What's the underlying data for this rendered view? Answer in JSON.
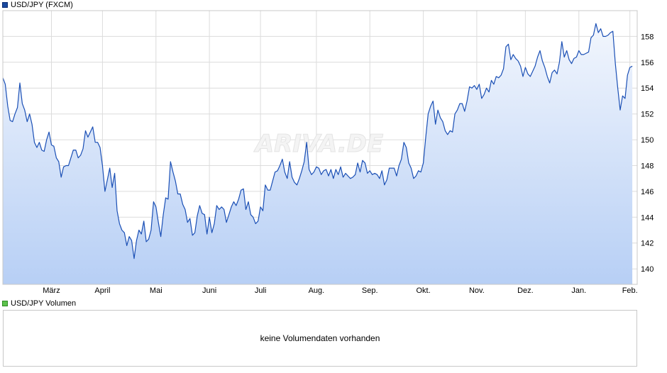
{
  "legend": {
    "price_label": "USD/JPY (FXCM)",
    "volume_label": "USD/JPY Volumen",
    "price_color": "#1a4aa0",
    "volume_color": "#5cc24c"
  },
  "watermark": "ARIVA.DE",
  "volume_panel": {
    "message": "keine Volumendaten vorhanden"
  },
  "chart_data": {
    "type": "area",
    "title": "",
    "xlabel": "",
    "ylabel": "",
    "ylim": [
      138.8,
      160.0
    ],
    "yticks": [
      140,
      142,
      144,
      146,
      148,
      150,
      152,
      154,
      156,
      158
    ],
    "x_range": [
      0,
      261
    ],
    "xticks": [
      {
        "label": "März",
        "x": 20
      },
      {
        "label": "April",
        "x": 41
      },
      {
        "label": "Mai",
        "x": 63
      },
      {
        "label": "Juni",
        "x": 85
      },
      {
        "label": "Juli",
        "x": 106
      },
      {
        "label": "Aug.",
        "x": 129
      },
      {
        "label": "Sep.",
        "x": 151
      },
      {
        "label": "Okt.",
        "x": 173
      },
      {
        "label": "Nov.",
        "x": 195
      },
      {
        "label": "Dez.",
        "x": 215
      },
      {
        "label": "Jan.",
        "x": 237
      },
      {
        "label": "Feb.",
        "x": 258
      }
    ],
    "grid": true,
    "line_color": "#1a4fb5",
    "fill_top_color": "#f2f6fd",
    "fill_bottom_color": "#b7cff5",
    "series": [
      {
        "values": [
          [
            0,
            154.8
          ],
          [
            1,
            154.3
          ],
          [
            2,
            152.6
          ],
          [
            3,
            151.5
          ],
          [
            4,
            151.4
          ],
          [
            5,
            152.0
          ],
          [
            6,
            152.5
          ],
          [
            7,
            154.4
          ],
          [
            8,
            152.8
          ],
          [
            9,
            152.3
          ],
          [
            10,
            151.4
          ],
          [
            11,
            152.0
          ],
          [
            12,
            151.2
          ],
          [
            13,
            149.8
          ],
          [
            14,
            149.4
          ],
          [
            15,
            149.8
          ],
          [
            16,
            149.2
          ],
          [
            17,
            149.1
          ],
          [
            18,
            150.0
          ],
          [
            19,
            150.6
          ],
          [
            20,
            149.6
          ],
          [
            21,
            149.5
          ],
          [
            22,
            148.6
          ],
          [
            23,
            148.3
          ],
          [
            24,
            147.1
          ],
          [
            25,
            147.9
          ],
          [
            26,
            148.0
          ],
          [
            27,
            148.0
          ],
          [
            28,
            148.6
          ],
          [
            29,
            149.2
          ],
          [
            30,
            149.2
          ],
          [
            31,
            148.6
          ],
          [
            32,
            148.8
          ],
          [
            33,
            149.3
          ],
          [
            34,
            150.7
          ],
          [
            35,
            150.2
          ],
          [
            36,
            150.6
          ],
          [
            37,
            151.0
          ],
          [
            38,
            149.8
          ],
          [
            39,
            149.8
          ],
          [
            40,
            149.4
          ],
          [
            41,
            148.0
          ],
          [
            42,
            146.0
          ],
          [
            43,
            146.9
          ],
          [
            44,
            147.8
          ],
          [
            45,
            146.3
          ],
          [
            46,
            147.4
          ],
          [
            47,
            144.5
          ],
          [
            48,
            143.5
          ],
          [
            49,
            143.0
          ],
          [
            50,
            142.8
          ],
          [
            51,
            141.8
          ],
          [
            52,
            142.5
          ],
          [
            53,
            142.2
          ],
          [
            54,
            140.8
          ],
          [
            55,
            142.2
          ],
          [
            56,
            143.0
          ],
          [
            57,
            142.7
          ],
          [
            58,
            143.7
          ],
          [
            59,
            142.1
          ],
          [
            60,
            142.3
          ],
          [
            61,
            143.0
          ],
          [
            62,
            145.2
          ],
          [
            63,
            144.8
          ],
          [
            64,
            143.6
          ],
          [
            65,
            142.5
          ],
          [
            66,
            144.2
          ],
          [
            67,
            145.5
          ],
          [
            68,
            145.4
          ],
          [
            69,
            148.3
          ],
          [
            70,
            147.5
          ],
          [
            71,
            146.8
          ],
          [
            72,
            145.8
          ],
          [
            73,
            145.8
          ],
          [
            74,
            145.0
          ],
          [
            75,
            144.6
          ],
          [
            76,
            143.6
          ],
          [
            77,
            143.9
          ],
          [
            78,
            142.6
          ],
          [
            79,
            142.8
          ],
          [
            80,
            144.1
          ],
          [
            81,
            144.9
          ],
          [
            82,
            144.3
          ],
          [
            83,
            144.2
          ],
          [
            84,
            142.7
          ],
          [
            85,
            144.0
          ],
          [
            86,
            142.8
          ],
          [
            87,
            143.5
          ],
          [
            88,
            144.9
          ],
          [
            89,
            144.6
          ],
          [
            90,
            144.8
          ],
          [
            91,
            144.6
          ],
          [
            92,
            143.6
          ],
          [
            93,
            144.2
          ],
          [
            94,
            144.8
          ],
          [
            95,
            145.2
          ],
          [
            96,
            144.9
          ],
          [
            97,
            145.4
          ],
          [
            98,
            146.1
          ],
          [
            99,
            146.2
          ],
          [
            100,
            144.6
          ],
          [
            101,
            145.2
          ],
          [
            102,
            144.2
          ],
          [
            103,
            144.0
          ],
          [
            104,
            143.5
          ],
          [
            105,
            143.7
          ],
          [
            106,
            144.8
          ],
          [
            107,
            144.5
          ],
          [
            108,
            146.5
          ],
          [
            109,
            146.1
          ],
          [
            110,
            146.1
          ],
          [
            111,
            146.8
          ],
          [
            112,
            147.5
          ],
          [
            113,
            147.6
          ],
          [
            114,
            148.0
          ],
          [
            115,
            148.5
          ],
          [
            116,
            147.5
          ],
          [
            117,
            147.0
          ],
          [
            118,
            148.3
          ],
          [
            119,
            147.1
          ],
          [
            120,
            146.7
          ],
          [
            121,
            146.5
          ],
          [
            122,
            147.0
          ],
          [
            123,
            147.6
          ],
          [
            124,
            148.3
          ],
          [
            125,
            149.8
          ],
          [
            126,
            147.7
          ],
          [
            127,
            147.3
          ],
          [
            128,
            147.5
          ],
          [
            129,
            147.9
          ],
          [
            130,
            147.8
          ],
          [
            131,
            147.3
          ],
          [
            132,
            147.6
          ],
          [
            133,
            147.7
          ],
          [
            134,
            147.2
          ],
          [
            135,
            147.7
          ],
          [
            136,
            147.0
          ],
          [
            137,
            147.7
          ],
          [
            138,
            147.3
          ],
          [
            139,
            147.9
          ],
          [
            140,
            147.1
          ],
          [
            141,
            147.4
          ],
          [
            142,
            147.2
          ],
          [
            143,
            147.0
          ],
          [
            144,
            147.1
          ],
          [
            145,
            147.3
          ],
          [
            146,
            148.2
          ],
          [
            147,
            147.5
          ],
          [
            148,
            148.4
          ],
          [
            149,
            148.2
          ],
          [
            150,
            147.4
          ],
          [
            151,
            147.6
          ],
          [
            152,
            147.3
          ],
          [
            153,
            147.4
          ],
          [
            154,
            147.3
          ],
          [
            155,
            147.0
          ],
          [
            156,
            147.6
          ],
          [
            157,
            146.5
          ],
          [
            158,
            146.9
          ],
          [
            159,
            147.8
          ],
          [
            160,
            147.8
          ],
          [
            161,
            147.8
          ],
          [
            162,
            147.2
          ],
          [
            163,
            148.0
          ],
          [
            164,
            148.5
          ],
          [
            165,
            149.8
          ],
          [
            166,
            149.4
          ],
          [
            167,
            148.2
          ],
          [
            168,
            147.8
          ],
          [
            169,
            147.0
          ],
          [
            170,
            147.2
          ],
          [
            171,
            147.6
          ],
          [
            172,
            147.5
          ],
          [
            173,
            148.2
          ],
          [
            174,
            150.2
          ],
          [
            175,
            152.0
          ],
          [
            176,
            152.6
          ],
          [
            177,
            153.0
          ],
          [
            178,
            151.2
          ],
          [
            179,
            152.3
          ],
          [
            180,
            151.7
          ],
          [
            181,
            151.4
          ],
          [
            182,
            150.7
          ],
          [
            183,
            150.4
          ],
          [
            184,
            150.7
          ],
          [
            185,
            150.6
          ],
          [
            186,
            152.0
          ],
          [
            187,
            152.3
          ],
          [
            188,
            152.8
          ],
          [
            189,
            152.8
          ],
          [
            190,
            152.2
          ],
          [
            191,
            153.0
          ],
          [
            192,
            154.1
          ],
          [
            193,
            154.0
          ],
          [
            194,
            154.2
          ],
          [
            195,
            153.9
          ],
          [
            196,
            154.3
          ],
          [
            197,
            153.2
          ],
          [
            198,
            153.5
          ],
          [
            199,
            154.0
          ],
          [
            200,
            153.7
          ],
          [
            201,
            154.6
          ],
          [
            202,
            154.3
          ],
          [
            203,
            154.9
          ],
          [
            204,
            154.8
          ],
          [
            205,
            155.0
          ],
          [
            206,
            155.5
          ],
          [
            207,
            157.2
          ],
          [
            208,
            157.4
          ],
          [
            209,
            156.2
          ],
          [
            210,
            156.6
          ],
          [
            211,
            156.3
          ],
          [
            212,
            156.1
          ],
          [
            213,
            155.7
          ],
          [
            214,
            154.9
          ],
          [
            215,
            155.6
          ],
          [
            216,
            155.1
          ],
          [
            217,
            154.9
          ],
          [
            218,
            155.3
          ],
          [
            219,
            155.7
          ],
          [
            220,
            156.4
          ],
          [
            221,
            156.9
          ],
          [
            222,
            156.1
          ],
          [
            223,
            155.6
          ],
          [
            224,
            154.9
          ],
          [
            225,
            154.4
          ],
          [
            226,
            155.2
          ],
          [
            227,
            155.4
          ],
          [
            228,
            155.1
          ],
          [
            229,
            156.0
          ],
          [
            230,
            157.6
          ],
          [
            231,
            156.4
          ],
          [
            232,
            156.9
          ],
          [
            233,
            156.2
          ],
          [
            234,
            155.9
          ],
          [
            235,
            156.3
          ],
          [
            236,
            156.4
          ],
          [
            237,
            156.9
          ],
          [
            238,
            156.6
          ],
          [
            239,
            156.6
          ],
          [
            240,
            156.7
          ],
          [
            241,
            156.8
          ],
          [
            242,
            157.9
          ],
          [
            243,
            158.1
          ],
          [
            244,
            159.0
          ],
          [
            245,
            158.3
          ],
          [
            246,
            158.6
          ],
          [
            247,
            158.0
          ],
          [
            248,
            158.0
          ],
          [
            249,
            158.1
          ],
          [
            250,
            158.3
          ],
          [
            251,
            158.4
          ],
          [
            252,
            155.9
          ],
          [
            253,
            154.0
          ],
          [
            254,
            152.3
          ],
          [
            255,
            153.4
          ],
          [
            256,
            153.2
          ],
          [
            257,
            155.0
          ],
          [
            258,
            155.6
          ],
          [
            259,
            155.7
          ]
        ]
      }
    ]
  }
}
